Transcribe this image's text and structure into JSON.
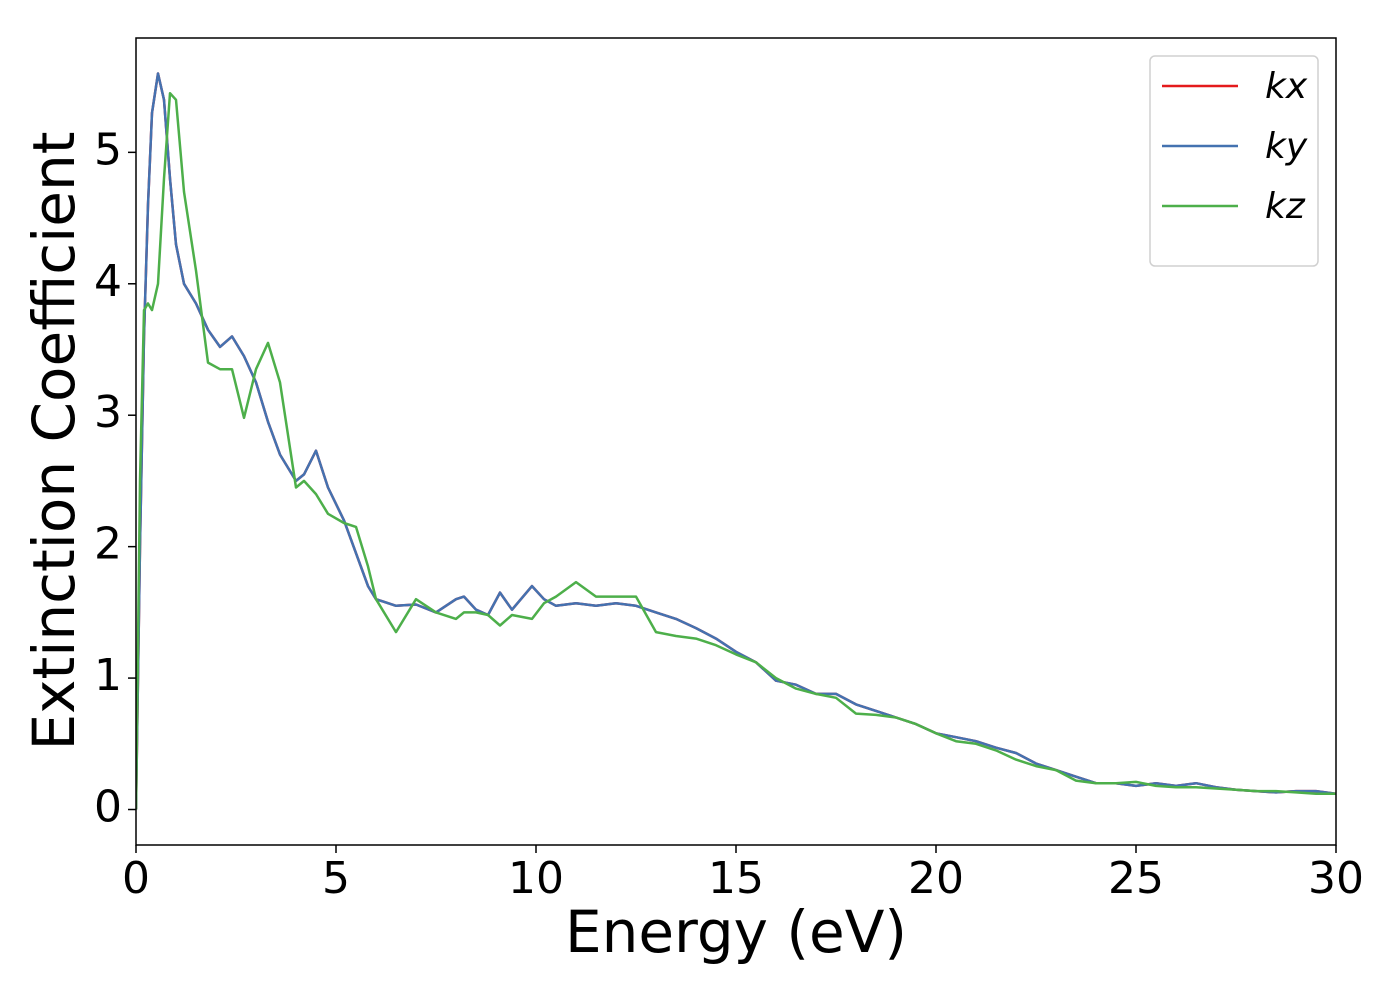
{
  "chart_data": {
    "type": "line",
    "xlabel": "Energy (eV)",
    "ylabel": "Extinction Coefficient",
    "x": [
      0,
      0.1,
      0.2,
      0.3,
      0.4,
      0.55,
      0.7,
      0.85,
      1.0,
      1.2,
      1.5,
      1.8,
      2.1,
      2.4,
      2.7,
      3.0,
      3.3,
      3.6,
      4.0,
      4.2,
      4.5,
      4.8,
      5.2,
      5.5,
      5.8,
      6.0,
      6.5,
      7.0,
      7.5,
      8.0,
      8.2,
      8.5,
      8.8,
      9.1,
      9.4,
      9.9,
      10.2,
      10.5,
      11.0,
      11.5,
      12.0,
      12.5,
      13.0,
      13.5,
      14.0,
      14.5,
      15.0,
      15.5,
      16.0,
      16.5,
      17.0,
      17.5,
      18.0,
      18.5,
      19.0,
      19.5,
      20.0,
      20.5,
      21.0,
      21.5,
      22.0,
      22.5,
      23.0,
      23.5,
      24.0,
      24.5,
      25.0,
      25.5,
      26.0,
      26.5,
      27.0,
      27.5,
      28.0,
      28.5,
      29.0,
      29.5,
      30
    ],
    "series": [
      {
        "name": "kx",
        "color": "#e41a1c",
        "values": [
          0,
          2.0,
          3.6,
          4.6,
          5.3,
          5.6,
          5.4,
          4.8,
          4.3,
          4.0,
          3.85,
          3.65,
          3.52,
          3.6,
          3.45,
          3.25,
          2.95,
          2.7,
          2.5,
          2.55,
          2.73,
          2.45,
          2.2,
          1.95,
          1.7,
          1.6,
          1.55,
          1.56,
          1.5,
          1.6,
          1.62,
          1.52,
          1.48,
          1.65,
          1.52,
          1.7,
          1.6,
          1.55,
          1.57,
          1.55,
          1.57,
          1.55,
          1.5,
          1.45,
          1.38,
          1.3,
          1.2,
          1.12,
          0.98,
          0.95,
          0.88,
          0.88,
          0.8,
          0.75,
          0.7,
          0.65,
          0.58,
          0.55,
          0.52,
          0.47,
          0.43,
          0.35,
          0.3,
          0.25,
          0.2,
          0.2,
          0.18,
          0.2,
          0.18,
          0.2,
          0.17,
          0.15,
          0.14,
          0.13,
          0.14,
          0.14,
          0.12
        ]
      },
      {
        "name": "ky",
        "color": "#4472b0",
        "values": [
          0,
          2.0,
          3.6,
          4.6,
          5.3,
          5.6,
          5.4,
          4.8,
          4.3,
          4.0,
          3.85,
          3.65,
          3.52,
          3.6,
          3.45,
          3.25,
          2.95,
          2.7,
          2.5,
          2.55,
          2.73,
          2.45,
          2.2,
          1.95,
          1.7,
          1.6,
          1.55,
          1.56,
          1.5,
          1.6,
          1.62,
          1.52,
          1.48,
          1.65,
          1.52,
          1.7,
          1.6,
          1.55,
          1.57,
          1.55,
          1.57,
          1.55,
          1.5,
          1.45,
          1.38,
          1.3,
          1.2,
          1.12,
          0.98,
          0.95,
          0.88,
          0.88,
          0.8,
          0.75,
          0.7,
          0.65,
          0.58,
          0.55,
          0.52,
          0.47,
          0.43,
          0.35,
          0.3,
          0.25,
          0.2,
          0.2,
          0.18,
          0.2,
          0.18,
          0.2,
          0.17,
          0.15,
          0.14,
          0.13,
          0.14,
          0.14,
          0.12
        ]
      },
      {
        "name": "kz",
        "color": "#4daf4a",
        "values": [
          0,
          2.5,
          3.8,
          3.85,
          3.8,
          4.0,
          4.8,
          5.45,
          5.4,
          4.7,
          4.1,
          3.4,
          3.35,
          3.35,
          2.98,
          3.35,
          3.55,
          3.25,
          2.45,
          2.5,
          2.4,
          2.25,
          2.18,
          2.15,
          1.85,
          1.6,
          1.35,
          1.6,
          1.5,
          1.45,
          1.5,
          1.5,
          1.48,
          1.4,
          1.48,
          1.45,
          1.57,
          1.62,
          1.73,
          1.62,
          1.62,
          1.62,
          1.35,
          1.32,
          1.3,
          1.25,
          1.18,
          1.12,
          1.0,
          0.92,
          0.88,
          0.85,
          0.73,
          0.72,
          0.7,
          0.65,
          0.58,
          0.52,
          0.5,
          0.45,
          0.38,
          0.33,
          0.3,
          0.22,
          0.2,
          0.2,
          0.21,
          0.18,
          0.17,
          0.17,
          0.16,
          0.15,
          0.14,
          0.14,
          0.13,
          0.12,
          0.12
        ]
      }
    ],
    "xlim": [
      0,
      30
    ],
    "ylim": [
      -0.27,
      5.87
    ],
    "xticks": [
      0,
      5,
      10,
      15,
      20,
      25,
      30
    ],
    "yticks": [
      0,
      1,
      2,
      3,
      4,
      5
    ],
    "legend": "upper right"
  }
}
